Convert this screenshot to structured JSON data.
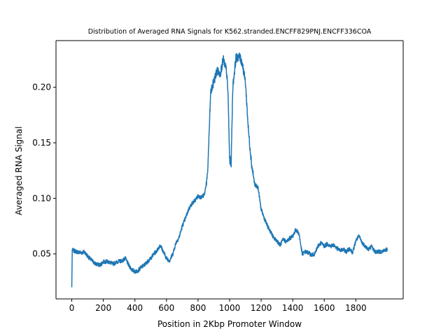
{
  "chart_data": {
    "type": "line",
    "title": "Distribution of Averaged RNA Signals for K562.stranded.ENCFF829PNJ.ENCFF336COA",
    "xlabel": "Position in 2Kbp Promoter Window",
    "ylabel": "Averaged RNA Signal",
    "xlim": [
      -100,
      2100
    ],
    "ylim": [
      0.0095,
      0.242
    ],
    "xticks": [
      0,
      200,
      400,
      600,
      800,
      1000,
      1200,
      1400,
      1600,
      1800
    ],
    "yticks": [
      0.05,
      0.1,
      0.15,
      0.2
    ],
    "ytick_labels": [
      "0.05",
      "0.10",
      "0.15",
      "0.20"
    ],
    "grid": false,
    "line_color": "#1f77b4",
    "series": [
      {
        "x": [
          0,
          3,
          10,
          30,
          60,
          80,
          100,
          120,
          150,
          180,
          200,
          230,
          260,
          290,
          320,
          340,
          360,
          380,
          400,
          420,
          440,
          460,
          480,
          500,
          520,
          540,
          560,
          580,
          600,
          620,
          640,
          660,
          680,
          700,
          720,
          740,
          760,
          780,
          800,
          820,
          840,
          860,
          880,
          900,
          920,
          940,
          960,
          980,
          990,
          1000,
          1010,
          1020,
          1040,
          1060,
          1080,
          1100,
          1120,
          1140,
          1160,
          1180,
          1200,
          1220,
          1240,
          1260,
          1280,
          1300,
          1320,
          1340,
          1360,
          1380,
          1400,
          1420,
          1440,
          1460,
          1480,
          1500,
          1520,
          1540,
          1560,
          1580,
          1600,
          1620,
          1640,
          1660,
          1680,
          1700,
          1720,
          1740,
          1760,
          1780,
          1800,
          1820,
          1840,
          1860,
          1880,
          1900,
          1920,
          1940,
          1960,
          1980,
          1999
        ],
        "y": [
          0.02,
          0.054,
          0.053,
          0.052,
          0.051,
          0.052,
          0.048,
          0.045,
          0.041,
          0.04,
          0.043,
          0.043,
          0.041,
          0.043,
          0.044,
          0.046,
          0.04,
          0.036,
          0.034,
          0.035,
          0.038,
          0.04,
          0.043,
          0.046,
          0.05,
          0.053,
          0.058,
          0.052,
          0.046,
          0.044,
          0.05,
          0.06,
          0.065,
          0.075,
          0.082,
          0.09,
          0.095,
          0.098,
          0.102,
          0.101,
          0.103,
          0.12,
          0.195,
          0.205,
          0.215,
          0.212,
          0.225,
          0.215,
          0.195,
          0.135,
          0.132,
          0.2,
          0.226,
          0.228,
          0.222,
          0.205,
          0.16,
          0.13,
          0.112,
          0.11,
          0.09,
          0.082,
          0.075,
          0.07,
          0.064,
          0.062,
          0.058,
          0.063,
          0.061,
          0.064,
          0.066,
          0.072,
          0.068,
          0.05,
          0.052,
          0.051,
          0.049,
          0.05,
          0.057,
          0.06,
          0.057,
          0.059,
          0.057,
          0.058,
          0.055,
          0.053,
          0.054,
          0.052,
          0.055,
          0.051,
          0.062,
          0.066,
          0.06,
          0.057,
          0.054,
          0.057,
          0.052,
          0.052,
          0.052,
          0.053,
          0.054
        ]
      }
    ]
  }
}
